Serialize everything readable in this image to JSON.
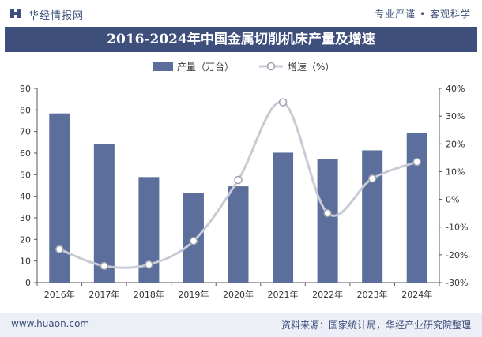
{
  "header": {
    "brand": "华经情报网",
    "slogan": "专业严谨 • 客观科学"
  },
  "title": "2016-2024年中国金属切削机床产量及增速",
  "footer": {
    "site": "www.huaon.com",
    "source": "资料来源：国家统计局，华经产业研究院整理"
  },
  "colors": {
    "bar": "#5b6e9c",
    "line": "#c8cbd4",
    "title_bg": "#3f4f7c"
  },
  "chart_data": {
    "type": "bar+line",
    "categories": [
      "2016年",
      "2017年",
      "2018年",
      "2019年",
      "2020年",
      "2021年",
      "2022年",
      "2023年",
      "2024年"
    ],
    "series": [
      {
        "name": "产量（万台）",
        "type": "bar",
        "axis": "left",
        "values": [
          78.4,
          64.2,
          48.9,
          41.6,
          44.6,
          60.2,
          57.2,
          61.3,
          69.5
        ]
      },
      {
        "name": "增速（%）",
        "type": "line",
        "axis": "right",
        "values": [
          -18,
          -24,
          -23.5,
          -15,
          7,
          35,
          -5,
          7.5,
          13.5
        ]
      }
    ],
    "ylim_left": [
      0,
      90
    ],
    "yticks_left": [
      0,
      10,
      20,
      30,
      40,
      50,
      60,
      70,
      80,
      90
    ],
    "ylim_right": [
      -30,
      40
    ],
    "yticks_right_labels": [
      "-30%",
      "-20%",
      "-10%",
      "0%",
      "10%",
      "20%",
      "30%",
      "40%"
    ],
    "legend_position": "top-center",
    "grid": false
  }
}
